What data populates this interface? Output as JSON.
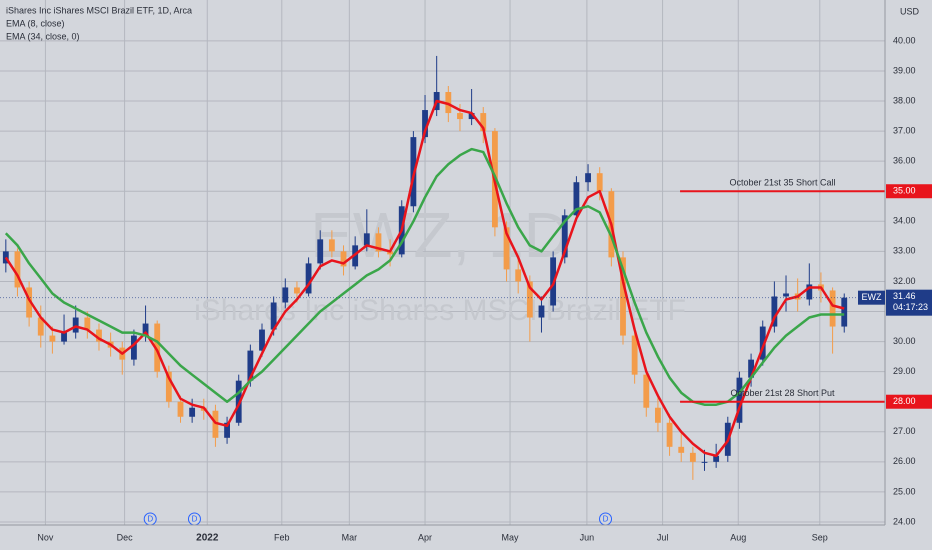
{
  "chart_data": {
    "type": "candlestick",
    "title": "iShares Inc iShares MSCI Brazil ETF, 1D, Arca",
    "currency": "USD",
    "watermark": "EWZ, 1D",
    "watermark_subtitle": "iShares Inc iShares MSCI Brazil ETF",
    "xlim": [
      0,
      76
    ],
    "xticks": [
      {
        "value": 3.9,
        "label": "Nov"
      },
      {
        "value": 10.7,
        "label": "Dec"
      },
      {
        "value": 17.8,
        "label": "2022"
      },
      {
        "value": 24.2,
        "label": "Feb"
      },
      {
        "value": 30,
        "label": "Mar"
      },
      {
        "value": 36.5,
        "label": "Apr"
      },
      {
        "value": 43.8,
        "label": "May"
      },
      {
        "value": 50.4,
        "label": "Jun"
      },
      {
        "value": 56.9,
        "label": "Jul"
      },
      {
        "value": 63.4,
        "label": "Aug"
      },
      {
        "value": 70.4,
        "label": "Sep"
      }
    ],
    "ylim": [
      23.9,
      41.36
    ],
    "yticks": [
      {
        "value": 24,
        "label": "24.00"
      },
      {
        "value": 25,
        "label": "25.00"
      },
      {
        "value": 26,
        "label": "26.00"
      },
      {
        "value": 27,
        "label": "27.00"
      },
      {
        "value": 28,
        "label": "28.00"
      },
      {
        "value": 29,
        "label": "29.00"
      },
      {
        "value": 30,
        "label": "30.00"
      },
      {
        "value": 31,
        "label": "31.00"
      },
      {
        "value": 32,
        "label": "32.00"
      },
      {
        "value": 33,
        "label": "33.00"
      },
      {
        "value": 34,
        "label": "34.00"
      },
      {
        "value": 35,
        "label": "35.00"
      },
      {
        "value": 36,
        "label": "36.00"
      },
      {
        "value": 37,
        "label": "37.00"
      },
      {
        "value": 38,
        "label": "38.00"
      },
      {
        "value": 39,
        "label": "39.00"
      },
      {
        "value": 40,
        "label": "40.00"
      }
    ],
    "grid": true,
    "up_color": "#1f3c88",
    "down_color": "#f39c4a",
    "candles": [
      [
        32.6,
        33.4,
        32.3,
        33.0
      ],
      [
        33.0,
        33.1,
        31.5,
        31.8
      ],
      [
        31.8,
        32.0,
        30.5,
        30.8
      ],
      [
        30.8,
        31.2,
        29.8,
        30.2
      ],
      [
        30.2,
        30.5,
        29.6,
        30.0
      ],
      [
        30.0,
        30.9,
        29.9,
        30.3
      ],
      [
        30.3,
        31.2,
        30.1,
        30.8
      ],
      [
        30.8,
        31.0,
        30.1,
        30.4
      ],
      [
        30.4,
        30.6,
        29.7,
        30.0
      ],
      [
        30.0,
        30.3,
        29.5,
        29.8
      ],
      [
        29.8,
        30.0,
        28.9,
        29.4
      ],
      [
        29.4,
        30.4,
        29.2,
        30.2
      ],
      [
        30.2,
        31.2,
        30.0,
        30.6
      ],
      [
        30.6,
        30.7,
        28.8,
        29.0
      ],
      [
        29.0,
        29.2,
        27.8,
        28.0
      ],
      [
        28.0,
        28.2,
        27.3,
        27.5
      ],
      [
        27.5,
        28.1,
        27.3,
        27.8
      ],
      [
        27.8,
        28.1,
        27.4,
        27.7
      ],
      [
        27.7,
        27.9,
        26.5,
        26.8
      ],
      [
        26.8,
        27.5,
        26.6,
        27.3
      ],
      [
        27.3,
        28.9,
        27.2,
        28.7
      ],
      [
        28.7,
        29.9,
        28.5,
        29.7
      ],
      [
        29.7,
        30.6,
        29.5,
        30.4
      ],
      [
        30.4,
        31.5,
        30.2,
        31.3
      ],
      [
        31.3,
        32.1,
        31.1,
        31.8
      ],
      [
        31.8,
        32.0,
        31.3,
        31.6
      ],
      [
        31.6,
        32.8,
        31.5,
        32.6
      ],
      [
        32.6,
        33.7,
        32.4,
        33.4
      ],
      [
        33.4,
        33.7,
        32.8,
        33.0
      ],
      [
        33.0,
        33.2,
        32.2,
        32.5
      ],
      [
        32.5,
        33.5,
        32.4,
        33.2
      ],
      [
        33.2,
        34.4,
        33.0,
        33.6
      ],
      [
        33.6,
        33.8,
        32.8,
        33.0
      ],
      [
        33.0,
        33.4,
        32.5,
        32.9
      ],
      [
        32.9,
        34.7,
        32.8,
        34.5
      ],
      [
        34.5,
        37.0,
        34.3,
        36.8
      ],
      [
        36.8,
        38.2,
        36.6,
        37.7
      ],
      [
        37.7,
        39.5,
        37.5,
        38.3
      ],
      [
        38.3,
        38.5,
        37.3,
        37.6
      ],
      [
        37.6,
        37.9,
        37.0,
        37.4
      ],
      [
        37.4,
        38.4,
        37.2,
        37.6
      ],
      [
        37.6,
        37.8,
        36.6,
        37.0
      ],
      [
        37.0,
        37.1,
        33.5,
        33.8
      ],
      [
        33.8,
        34.0,
        32.0,
        32.4
      ],
      [
        32.4,
        32.8,
        31.6,
        32.0
      ],
      [
        32.0,
        32.2,
        30.0,
        30.8
      ],
      [
        30.8,
        31.5,
        30.3,
        31.2
      ],
      [
        31.2,
        33.0,
        31.0,
        32.8
      ],
      [
        32.8,
        34.4,
        32.6,
        34.2
      ],
      [
        34.2,
        35.5,
        34.0,
        35.3
      ],
      [
        35.3,
        35.9,
        35.0,
        35.6
      ],
      [
        35.6,
        35.8,
        34.7,
        35.0
      ],
      [
        35.0,
        35.1,
        32.5,
        32.8
      ],
      [
        32.8,
        33.0,
        29.9,
        30.2
      ],
      [
        30.2,
        30.4,
        28.6,
        28.9
      ],
      [
        28.9,
        29.1,
        27.5,
        27.8
      ],
      [
        27.8,
        28.2,
        27.0,
        27.3
      ],
      [
        27.3,
        27.6,
        26.2,
        26.5
      ],
      [
        26.5,
        27.0,
        26.0,
        26.3
      ],
      [
        26.3,
        26.5,
        25.4,
        26.0
      ],
      [
        26.0,
        26.4,
        25.7,
        26.0
      ],
      [
        26.0,
        26.6,
        25.8,
        26.2
      ],
      [
        26.2,
        27.5,
        26.0,
        27.3
      ],
      [
        27.3,
        29.0,
        27.1,
        28.8
      ],
      [
        28.8,
        29.6,
        28.5,
        29.4
      ],
      [
        29.4,
        30.7,
        29.2,
        30.5
      ],
      [
        30.5,
        32.0,
        30.3,
        31.5
      ],
      [
        31.5,
        32.2,
        31.0,
        31.6
      ],
      [
        31.6,
        32.1,
        31.0,
        31.4
      ],
      [
        31.4,
        32.6,
        31.2,
        31.9
      ],
      [
        31.9,
        32.3,
        31.3,
        31.7
      ],
      [
        31.7,
        31.8,
        29.6,
        30.5
      ],
      [
        30.5,
        31.6,
        30.3,
        31.46
      ]
    ],
    "series": [
      {
        "name": "EMA (8, close)",
        "color": "#e8141c",
        "values": [
          32.8,
          32.2,
          31.4,
          30.8,
          30.4,
          30.3,
          30.5,
          30.4,
          30.1,
          29.9,
          29.6,
          29.9,
          30.3,
          29.7,
          28.8,
          28.1,
          27.9,
          27.8,
          27.3,
          27.2,
          27.9,
          28.8,
          29.6,
          30.4,
          31.0,
          31.4,
          31.9,
          32.5,
          32.7,
          32.6,
          32.9,
          33.2,
          33.1,
          33.0,
          33.7,
          35.5,
          37.0,
          38.0,
          37.9,
          37.7,
          37.6,
          37.1,
          35.3,
          33.6,
          32.8,
          31.8,
          31.4,
          31.9,
          33.0,
          34.1,
          34.8,
          35.0,
          33.9,
          32.0,
          30.4,
          29.0,
          28.2,
          27.5,
          27.0,
          26.6,
          26.3,
          26.2,
          26.7,
          27.8,
          28.8,
          29.8,
          30.8,
          31.4,
          31.5,
          31.8,
          31.8,
          31.2,
          31.1
        ]
      },
      {
        "name": "EMA (34, close, 0)",
        "color": "#3aa64a",
        "values": [
          33.6,
          33.2,
          32.6,
          32.1,
          31.6,
          31.3,
          31.1,
          30.9,
          30.7,
          30.5,
          30.3,
          30.3,
          30.2,
          30.0,
          29.6,
          29.2,
          28.9,
          28.6,
          28.3,
          28.0,
          28.3,
          28.7,
          29.0,
          29.4,
          29.8,
          30.2,
          30.6,
          31.0,
          31.3,
          31.6,
          31.9,
          32.2,
          32.4,
          32.7,
          33.3,
          34.0,
          34.8,
          35.5,
          35.9,
          36.2,
          36.4,
          36.3,
          35.5,
          34.6,
          33.8,
          33.2,
          33.0,
          33.5,
          34.0,
          34.4,
          34.5,
          34.3,
          33.5,
          32.4,
          31.3,
          30.3,
          29.5,
          28.8,
          28.3,
          28.0,
          27.9,
          27.9,
          28.0,
          28.3,
          28.8,
          29.3,
          29.8,
          30.2,
          30.5,
          30.8,
          30.9,
          30.9,
          30.9
        ]
      }
    ],
    "levels": [
      {
        "value": 35,
        "label": "35.00",
        "text": "October 21st 35 Short Call",
        "x_start": 58.4,
        "color": "#e8141c"
      },
      {
        "value": 28,
        "label": "28.00",
        "text": "October 21st 28 Short Put",
        "x_start": 58.4,
        "color": "#e8141c"
      }
    ],
    "events": [
      {
        "x": 12.9,
        "label": "D"
      },
      {
        "x": 16.7,
        "label": "D"
      },
      {
        "x": 52,
        "label": "D"
      }
    ],
    "last_price": {
      "symbol": "EWZ",
      "value": 31.46,
      "countdown": "04:17:23",
      "color": "#1f3c88"
    }
  }
}
